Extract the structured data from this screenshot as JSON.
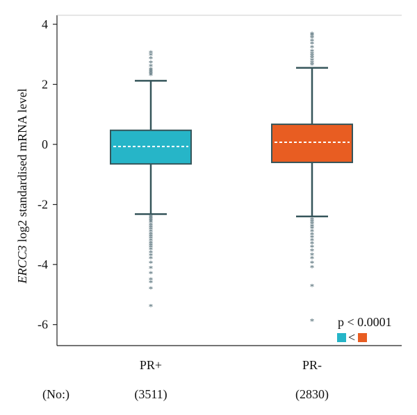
{
  "chart_data": {
    "type": "box",
    "ylabel_italic": "ERCC3",
    "ylabel_rest": " log2 standardised mRNA level",
    "ylim": [
      -6.7,
      4.3
    ],
    "yticks": [
      4,
      2,
      0,
      -2,
      -4,
      -6
    ],
    "ytick_labels": [
      "4",
      "2",
      "0",
      "-2",
      "-4",
      "-6"
    ],
    "count_row_label": "(No:)",
    "groups": [
      {
        "name": "PR+",
        "count": "(3511)",
        "color": "#26b5c8",
        "median": -0.07,
        "q1": -0.65,
        "q3": 0.47,
        "whisker_low": -2.32,
        "whisker_high": 2.12,
        "outliers_high": [
          2.3,
          2.35,
          2.4,
          2.45,
          2.5,
          2.6,
          2.72,
          2.85,
          2.97,
          3.05
        ],
        "outliers_low": [
          -2.4,
          -2.45,
          -2.5,
          -2.55,
          -2.6,
          -2.68,
          -2.75,
          -2.82,
          -2.9,
          -2.98,
          -3.05,
          -3.12,
          -3.2,
          -3.28,
          -3.35,
          -3.42,
          -3.5,
          -3.6,
          -3.7,
          -3.8,
          -3.95,
          -4.12,
          -4.3,
          -4.5,
          -4.6,
          -4.8,
          -5.4
        ]
      },
      {
        "name": "PR-",
        "count": "(2830)",
        "color": "#e85d22",
        "median": 0.07,
        "q1": -0.6,
        "q3": 0.67,
        "whisker_low": -2.4,
        "whisker_high": 2.55,
        "outliers_high": [
          2.65,
          2.72,
          2.8,
          2.88,
          2.95,
          3.02,
          3.1,
          3.22,
          3.35,
          3.45,
          3.55,
          3.62,
          3.68
        ],
        "outliers_low": [
          -2.5,
          -2.58,
          -2.65,
          -2.72,
          -2.8,
          -2.9,
          -3.0,
          -3.1,
          -3.2,
          -3.3,
          -3.42,
          -3.55,
          -3.68,
          -3.8,
          -3.95,
          -4.1,
          -4.72,
          -5.88
        ]
      }
    ],
    "legend": {
      "pvalue": "p < 0.0001",
      "comparison": "<",
      "position": "bottom-right"
    },
    "grid": false
  }
}
